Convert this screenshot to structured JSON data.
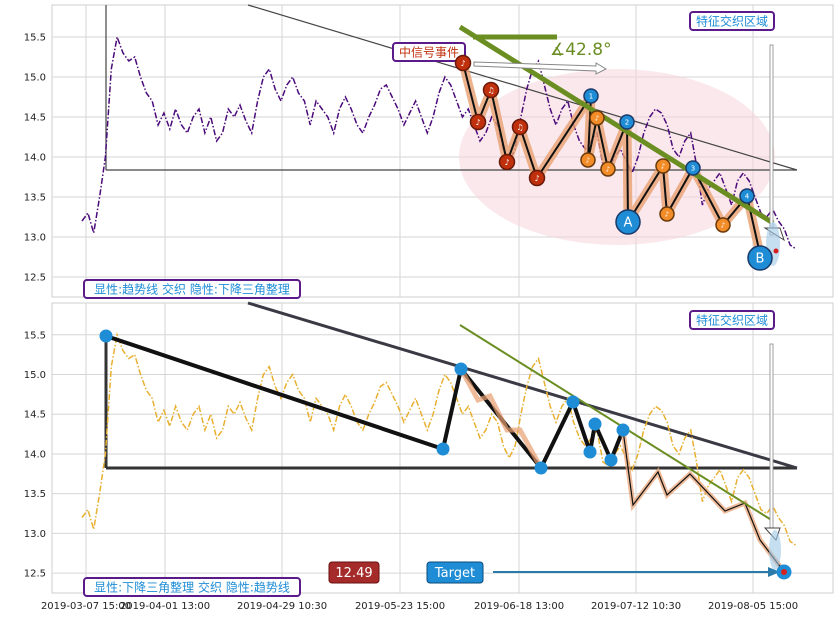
{
  "chart_data": [
    {
      "type": "line",
      "panel": "top",
      "x_labels": [
        "2019-03-07 15:00",
        "2019-04-01 13:00",
        "2019-04-29 10:30",
        "2019-05-23 15:00",
        "2019-06-18 13:00",
        "2019-07-12 10:30",
        "2019-08-05 15:00"
      ],
      "y_ticks": [
        12.5,
        13.0,
        13.5,
        14.0,
        14.5,
        15.0,
        15.5
      ],
      "ylim": [
        12.25,
        15.9
      ],
      "grid": true,
      "series": [
        {
          "color": "#4b0a7a",
          "x": [
            0,
            1,
            2,
            3,
            4,
            5,
            6,
            7,
            8,
            9,
            10,
            11,
            12,
            13,
            14,
            15,
            16,
            17,
            18,
            19,
            20,
            21,
            22,
            23,
            24,
            25,
            26,
            27,
            28,
            29,
            30,
            31,
            32,
            33,
            34,
            35,
            36,
            37,
            38,
            39,
            40,
            41,
            42,
            43,
            44,
            45,
            46,
            47,
            48,
            49,
            50,
            51,
            52,
            53,
            54,
            55,
            56,
            57,
            58,
            59,
            60,
            61,
            62,
            63,
            64,
            65,
            66,
            67,
            68,
            69,
            70,
            71,
            72,
            73,
            74,
            75,
            76,
            77,
            78,
            79,
            80,
            81,
            82,
            83,
            84,
            85,
            86,
            87,
            88,
            89,
            90,
            91,
            92,
            93,
            94,
            95,
            96,
            97,
            98,
            99,
            100,
            101,
            102,
            103,
            104,
            105,
            106,
            107,
            108,
            109,
            110,
            111,
            112,
            113,
            114,
            115,
            116,
            117,
            118,
            119,
            120,
            121,
            122
          ],
          "y": [
            13.2,
            13.3,
            13.05,
            13.5,
            14.0,
            15.1,
            15.5,
            15.3,
            15.2,
            15.25,
            15.0,
            14.8,
            14.7,
            14.4,
            14.55,
            14.35,
            14.6,
            14.4,
            14.3,
            14.5,
            14.6,
            14.3,
            14.5,
            14.2,
            14.3,
            14.6,
            14.5,
            14.65,
            14.45,
            14.3,
            14.7,
            15.0,
            15.1,
            14.85,
            14.7,
            14.9,
            15.0,
            14.8,
            14.7,
            14.4,
            14.7,
            14.6,
            14.5,
            14.3,
            14.6,
            14.75,
            14.6,
            14.4,
            14.3,
            14.5,
            14.65,
            14.85,
            14.9,
            14.75,
            14.6,
            14.4,
            14.55,
            14.7,
            14.5,
            14.3,
            14.5,
            14.8,
            15.0,
            14.9,
            14.7,
            14.5,
            14.6,
            14.4,
            14.2,
            14.3,
            14.5,
            14.4,
            14.1,
            13.95,
            14.1,
            14.5,
            14.85,
            15.1,
            15.2,
            14.9,
            14.6,
            14.4,
            14.6,
            14.7,
            14.4,
            14.2,
            14.1,
            14.2,
            14.3,
            13.9,
            13.85,
            14.0,
            14.1,
            13.95,
            13.8,
            14.0,
            14.3,
            14.5,
            14.6,
            14.55,
            14.4,
            14.1,
            14.0,
            14.2,
            14.3,
            13.9,
            13.4,
            13.6,
            13.7,
            13.8,
            13.6,
            13.4,
            13.7,
            13.8,
            13.7,
            13.5,
            13.3,
            13.25,
            13.35,
            13.2,
            13.1,
            12.9,
            12.85
          ]
        }
      ],
      "annotations": [
        {
          "text": "中信号事件"
        },
        {
          "text": "∡42.8°"
        },
        {
          "text": "特征交织区域"
        },
        {
          "text": "A"
        },
        {
          "text": "B"
        },
        {
          "text": "1"
        },
        {
          "text": "2"
        },
        {
          "text": "3"
        },
        {
          "text": "4"
        }
      ],
      "label": "显性:趋势线 交织 隐性:下降三角整理"
    },
    {
      "type": "line",
      "panel": "bottom",
      "x_labels": [
        "2019-03-07 15:00",
        "2019-04-01 13:00",
        "2019-04-29 10:30",
        "2019-05-23 15:00",
        "2019-06-18 13:00",
        "2019-07-12 10:30",
        "2019-08-05 15:00"
      ],
      "y_ticks": [
        12.5,
        13.0,
        13.5,
        14.0,
        14.5,
        15.0,
        15.5
      ],
      "ylim": [
        12.25,
        15.9
      ],
      "grid": true,
      "series": [
        {
          "color": "#e8b030",
          "x": [
            0,
            1,
            2,
            3,
            4,
            5,
            6,
            7,
            8,
            9,
            10,
            11,
            12,
            13,
            14,
            15,
            16,
            17,
            18,
            19,
            20,
            21,
            22,
            23,
            24,
            25,
            26,
            27,
            28,
            29,
            30,
            31,
            32,
            33,
            34,
            35,
            36,
            37,
            38,
            39,
            40,
            41,
            42,
            43,
            44,
            45,
            46,
            47,
            48,
            49,
            50,
            51,
            52,
            53,
            54,
            55,
            56,
            57,
            58,
            59,
            60,
            61,
            62,
            63,
            64,
            65,
            66,
            67,
            68,
            69,
            70,
            71,
            72,
            73,
            74,
            75,
            76,
            77,
            78,
            79,
            80,
            81,
            82,
            83,
            84,
            85,
            86,
            87,
            88,
            89,
            90,
            91,
            92,
            93,
            94,
            95,
            96,
            97,
            98,
            99,
            100,
            101,
            102,
            103,
            104,
            105,
            106,
            107,
            108,
            109,
            110,
            111,
            112,
            113,
            114,
            115,
            116,
            117,
            118,
            119,
            120,
            121,
            122
          ],
          "y": [
            13.2,
            13.3,
            13.05,
            13.5,
            14.0,
            15.1,
            15.5,
            15.3,
            15.2,
            15.25,
            15.0,
            14.8,
            14.7,
            14.4,
            14.55,
            14.35,
            14.6,
            14.4,
            14.3,
            14.5,
            14.6,
            14.3,
            14.5,
            14.2,
            14.3,
            14.6,
            14.5,
            14.65,
            14.45,
            14.3,
            14.7,
            15.0,
            15.1,
            14.85,
            14.7,
            14.9,
            15.0,
            14.8,
            14.7,
            14.4,
            14.7,
            14.6,
            14.5,
            14.3,
            14.6,
            14.75,
            14.6,
            14.4,
            14.3,
            14.5,
            14.65,
            14.85,
            14.9,
            14.75,
            14.6,
            14.4,
            14.55,
            14.7,
            14.5,
            14.3,
            14.5,
            14.8,
            15.0,
            14.9,
            14.7,
            14.5,
            14.6,
            14.4,
            14.2,
            14.3,
            14.5,
            14.4,
            14.1,
            13.95,
            14.1,
            14.5,
            14.85,
            15.1,
            15.2,
            14.9,
            14.6,
            14.4,
            14.6,
            14.7,
            14.4,
            14.2,
            14.1,
            14.2,
            14.3,
            13.9,
            13.85,
            14.0,
            14.1,
            13.95,
            13.8,
            14.0,
            14.3,
            14.5,
            14.6,
            14.55,
            14.4,
            14.1,
            14.0,
            14.2,
            14.3,
            13.9,
            13.4,
            13.6,
            13.7,
            13.8,
            13.6,
            13.4,
            13.7,
            13.8,
            13.7,
            13.5,
            13.3,
            13.25,
            13.35,
            13.2,
            13.1,
            12.9,
            12.85
          ]
        }
      ],
      "annotations": [
        {
          "text": "特征交织区域"
        },
        {
          "text": "12.49"
        },
        {
          "text": "Target"
        }
      ],
      "label": "显性:下降三角整理 交织 隐性:趋势线"
    }
  ],
  "colors": {
    "top_line": "#4b0a7a",
    "bottom_line": "#e8b030",
    "trend_green": "#6b8e23",
    "box_border": "#5a1a8a",
    "event_red": "#c0300c",
    "pivot_blue": "#1f8dd6",
    "pivot_orange": "#f28c28",
    "price_badge": "#a52a2a",
    "target_badge": "#1f8dd6"
  }
}
